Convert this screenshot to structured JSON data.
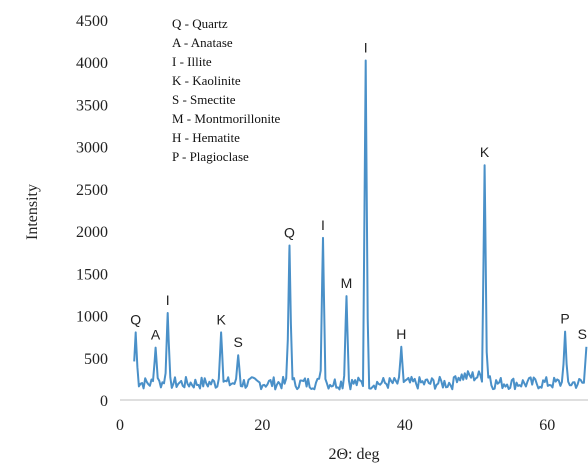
{
  "chart_data": {
    "type": "line",
    "xlabel": "2Θ: deg",
    "ylabel": "Intensity",
    "xlim": [
      0,
      66
    ],
    "ylim": [
      0,
      4500
    ],
    "xticks": [
      0,
      20,
      40,
      60
    ],
    "yticks": [
      0,
      500,
      1000,
      1500,
      2000,
      2500,
      3000,
      3500,
      4000,
      4500
    ],
    "grid": false,
    "line_color": "#4a90c8",
    "legend_position": "top-left",
    "legend": [
      "Q - Quartz",
      "A - Anatase",
      "I - Illite",
      "K - Kaolinite",
      "S - Smectite",
      "M - Montmorillonite",
      "H - Hematite",
      "P - Plagioclase"
    ],
    "peaks": [
      {
        "label": "Q",
        "x": 2.2,
        "y": 800
      },
      {
        "label": "A",
        "x": 5.0,
        "y": 620
      },
      {
        "label": "I",
        "x": 6.7,
        "y": 1030
      },
      {
        "label": "K",
        "x": 14.2,
        "y": 800
      },
      {
        "label": "S",
        "x": 16.6,
        "y": 530
      },
      {
        "label": "Q",
        "x": 23.8,
        "y": 1830
      },
      {
        "label": "I",
        "x": 28.5,
        "y": 1920
      },
      {
        "label": "M",
        "x": 31.8,
        "y": 1230
      },
      {
        "label": "I",
        "x": 34.5,
        "y": 4020
      },
      {
        "label": "H",
        "x": 39.5,
        "y": 630
      },
      {
        "label": "K",
        "x": 51.2,
        "y": 2780
      },
      {
        "label": "P",
        "x": 62.5,
        "y": 810
      },
      {
        "label": "S",
        "x": 65.5,
        "y": 630
      }
    ],
    "baseline_level": 200
  }
}
